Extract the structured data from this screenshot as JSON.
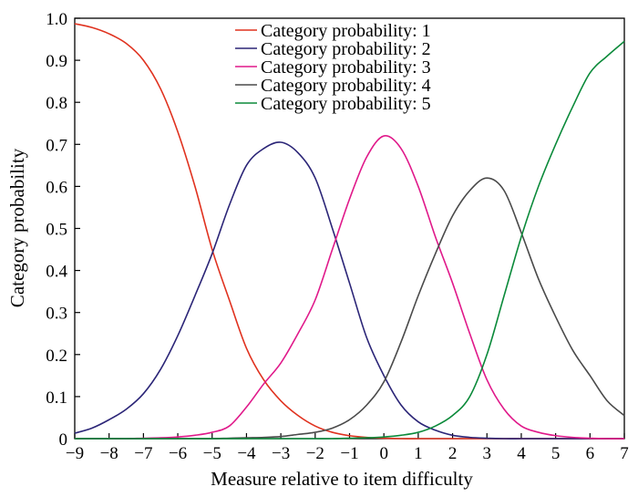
{
  "chart_data": {
    "type": "line",
    "title": "",
    "xlabel": "Measure relative to item difficulty",
    "ylabel": "Category probability",
    "xlim": [
      -9,
      7
    ],
    "ylim": [
      0,
      1.0
    ],
    "xticks": [
      -9,
      -8,
      -7,
      -6,
      -5,
      -4,
      -3,
      -2,
      -1,
      0,
      1,
      2,
      3,
      4,
      5,
      6,
      7
    ],
    "xtick_labels": [
      "−9",
      "−8",
      "−7",
      "−6",
      "−5",
      "−4",
      "−3",
      "−2",
      "−1",
      "0",
      "1",
      "2",
      "3",
      "4",
      "5",
      "6",
      "7"
    ],
    "yticks": [
      0,
      0.1,
      0.2,
      0.3,
      0.4,
      0.5,
      0.6,
      0.7,
      0.8,
      0.9,
      1.0
    ],
    "ytick_labels": [
      "0",
      "0.1",
      "0.2",
      "0.3",
      "0.4",
      "0.5",
      "0.6",
      "0.7",
      "0.8",
      "0.9",
      "1.0"
    ],
    "grid": false,
    "legend_position": "top-center",
    "x": [
      -9,
      -8.5,
      -8,
      -7.5,
      -7,
      -6.5,
      -6,
      -5.5,
      -5,
      -4.5,
      -4,
      -3.5,
      -3,
      -2.5,
      -2,
      -1.5,
      -1,
      -0.5,
      0,
      0.5,
      1,
      1.5,
      2,
      2.5,
      3,
      3.5,
      4,
      4.5,
      5,
      5.5,
      6,
      6.5,
      7
    ],
    "series": [
      {
        "name": "Category probability: 1",
        "color": "#e0321f",
        "values": [
          0.987,
          0.978,
          0.963,
          0.94,
          0.9,
          0.832,
          0.73,
          0.6,
          0.45,
          0.33,
          0.215,
          0.14,
          0.09,
          0.055,
          0.03,
          0.015,
          0.007,
          0.003,
          0.001,
          0.0,
          0.0,
          0.0,
          0.0,
          0.0,
          0.0,
          0.0,
          0.0,
          0.0,
          0.0,
          0.0,
          0.0,
          0.0,
          0.0
        ]
      },
      {
        "name": "Category probability: 2",
        "color": "#2b2577",
        "values": [
          0.013,
          0.025,
          0.045,
          0.07,
          0.107,
          0.165,
          0.245,
          0.34,
          0.44,
          0.555,
          0.65,
          0.69,
          0.705,
          0.68,
          0.62,
          0.5,
          0.37,
          0.24,
          0.15,
          0.08,
          0.04,
          0.02,
          0.008,
          0.003,
          0.001,
          0.0,
          0.0,
          0.0,
          0.0,
          0.0,
          0.0,
          0.0,
          0.0
        ]
      },
      {
        "name": "Category probability: 3",
        "color": "#e0198a",
        "values": [
          0.0,
          0.0,
          0.0,
          0.0,
          0.001,
          0.002,
          0.004,
          0.008,
          0.015,
          0.03,
          0.075,
          0.13,
          0.18,
          0.25,
          0.33,
          0.45,
          0.57,
          0.67,
          0.72,
          0.69,
          0.6,
          0.48,
          0.37,
          0.25,
          0.14,
          0.07,
          0.03,
          0.015,
          0.007,
          0.003,
          0.001,
          0.0,
          0.0
        ]
      },
      {
        "name": "Category probability: 4",
        "color": "#4a4a4a",
        "values": [
          0.0,
          0.0,
          0.0,
          0.0,
          0.0,
          0.0,
          0.0,
          0.0,
          0.0,
          0.001,
          0.002,
          0.003,
          0.005,
          0.01,
          0.015,
          0.025,
          0.045,
          0.08,
          0.135,
          0.23,
          0.34,
          0.44,
          0.53,
          0.59,
          0.62,
          0.59,
          0.49,
          0.38,
          0.29,
          0.21,
          0.15,
          0.09,
          0.055
        ]
      },
      {
        "name": "Category probability: 5",
        "color": "#0b8a3a",
        "values": [
          0.0,
          0.0,
          0.0,
          0.0,
          0.0,
          0.0,
          0.0,
          0.0,
          0.0,
          0.0,
          0.0,
          0.0,
          0.0,
          0.0,
          0.0,
          0.0,
          0.001,
          0.002,
          0.004,
          0.008,
          0.015,
          0.03,
          0.055,
          0.1,
          0.2,
          0.34,
          0.48,
          0.6,
          0.7,
          0.79,
          0.87,
          0.91,
          0.945
        ]
      }
    ]
  }
}
